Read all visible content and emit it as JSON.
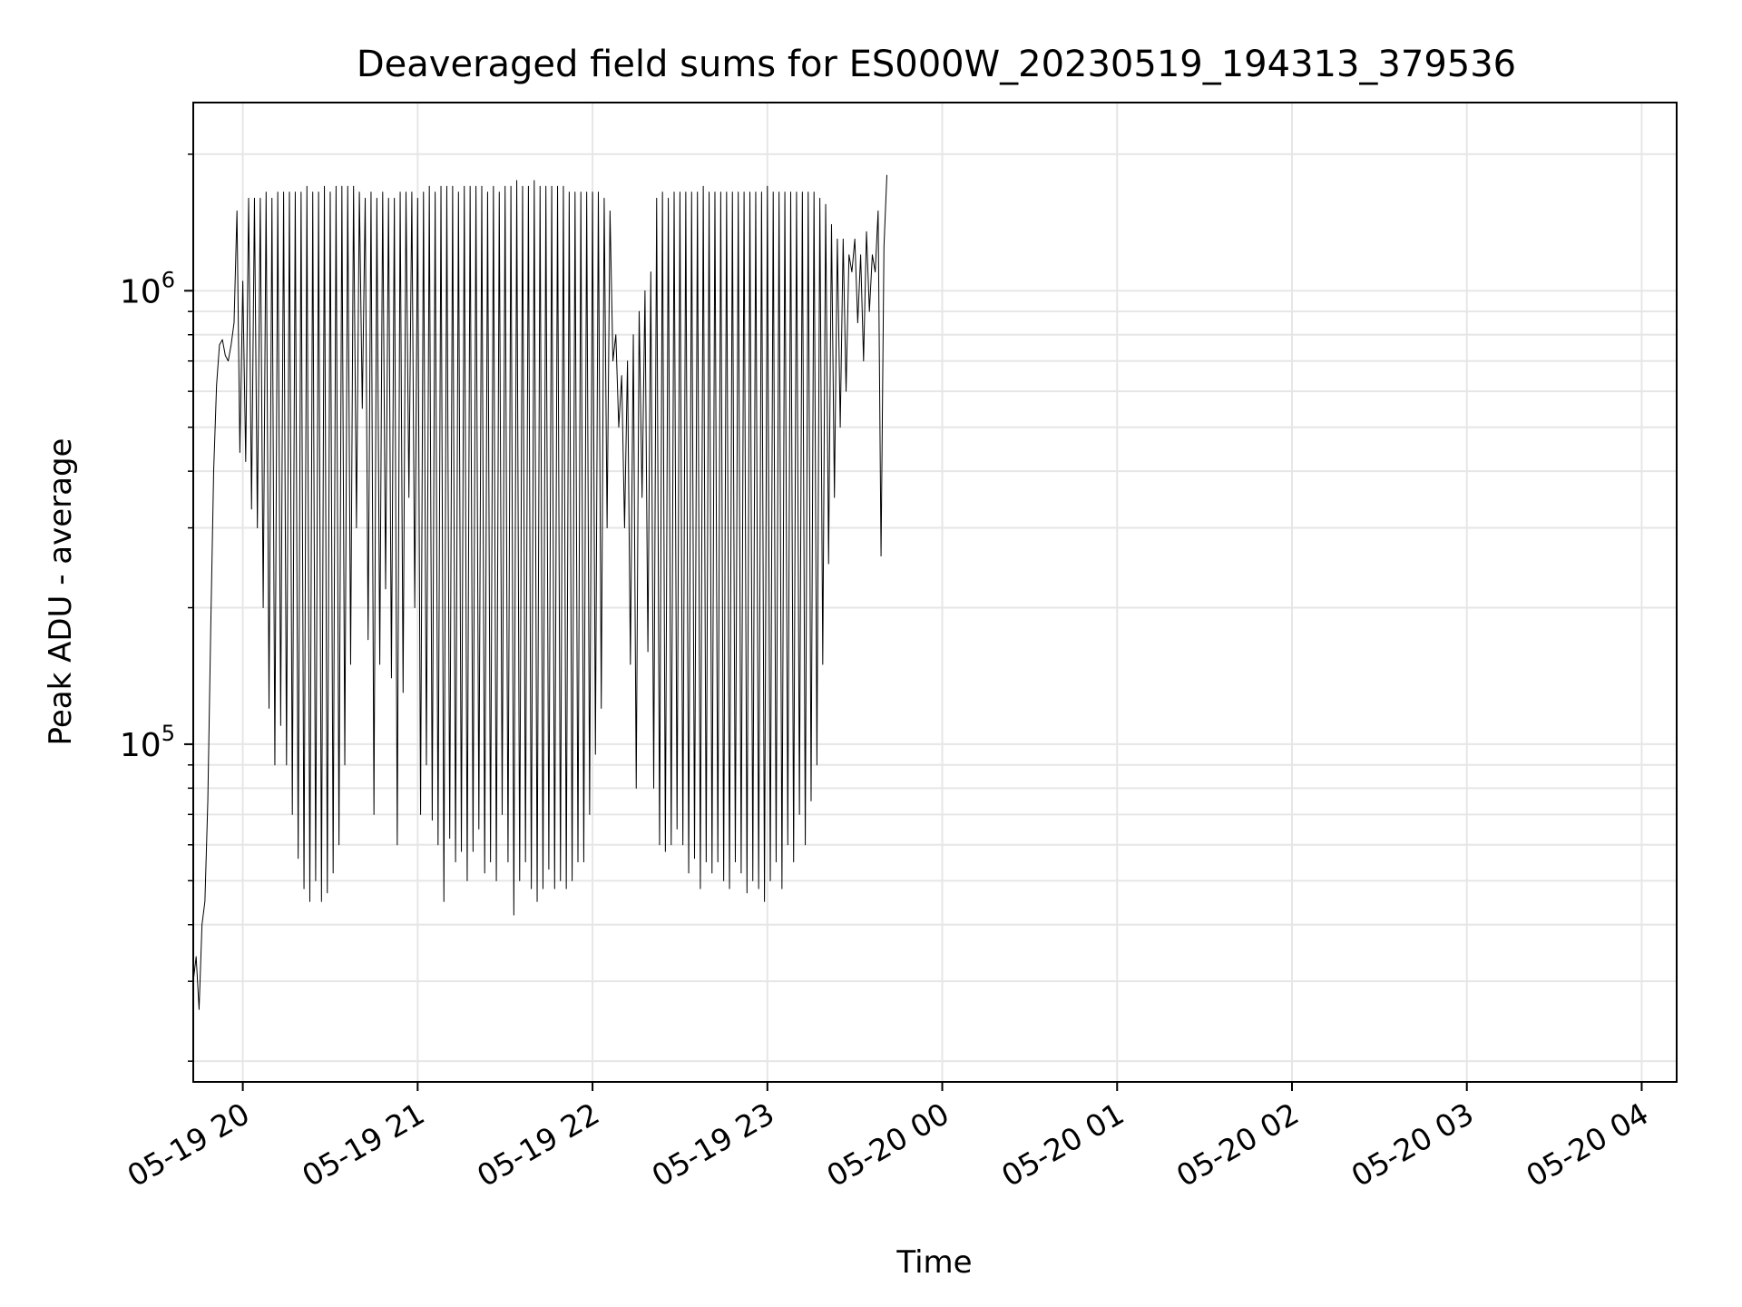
{
  "chart_data": {
    "type": "line",
    "title": "Deaveraged field sums for ES000W_20230519_194313_379536",
    "xlabel": "Time",
    "ylabel": "Peak ADU - average",
    "yscale": "log",
    "xlim": [
      "2023-05-19 19:43",
      "2023-05-20 04:12"
    ],
    "ylim": [
      18000,
      2600000
    ],
    "grid": true,
    "x_ticks": [
      "05-19 20",
      "05-19 21",
      "05-19 22",
      "05-19 23",
      "05-20 00",
      "05-20 01",
      "05-20 02",
      "05-20 03",
      "05-20 04"
    ],
    "y_ticks": [
      {
        "base": "10",
        "exp": "5",
        "value": 100000
      },
      {
        "base": "10",
        "exp": "6",
        "value": 1000000
      }
    ],
    "line_color": "#000000",
    "series": [
      {
        "x_start": "2023-05-19 19:43",
        "step_minutes": 1,
        "values": [
          30000,
          34000,
          26000,
          40000,
          45000,
          75000,
          180000,
          400000,
          620000,
          760000,
          780000,
          720000,
          700000,
          760000,
          850000,
          1500000,
          440000,
          1050000,
          420000,
          1600000,
          330000,
          1600000,
          300000,
          1600000,
          200000,
          1650000,
          120000,
          1600000,
          90000,
          1650000,
          110000,
          1650000,
          90000,
          1650000,
          70000,
          1650000,
          56000,
          1650000,
          48000,
          1700000,
          45000,
          1650000,
          50000,
          1650000,
          45000,
          1700000,
          47000,
          1650000,
          52000,
          1700000,
          60000,
          1700000,
          90000,
          1700000,
          150000,
          1700000,
          300000,
          1650000,
          550000,
          1600000,
          170000,
          1650000,
          70000,
          1600000,
          150000,
          1650000,
          220000,
          1600000,
          140000,
          1600000,
          60000,
          1650000,
          130000,
          1650000,
          350000,
          1650000,
          200000,
          1600000,
          70000,
          1650000,
          90000,
          1700000,
          68000,
          1650000,
          60000,
          1700000,
          45000,
          1700000,
          62000,
          1700000,
          55000,
          1650000,
          58000,
          1700000,
          50000,
          1700000,
          58000,
          1700000,
          65000,
          1700000,
          52000,
          1650000,
          55000,
          1700000,
          50000,
          1650000,
          70000,
          1700000,
          55000,
          1700000,
          42000,
          1750000,
          50000,
          1700000,
          55000,
          1700000,
          48000,
          1750000,
          45000,
          1700000,
          48000,
          1700000,
          53000,
          1700000,
          48000,
          1700000,
          50000,
          1700000,
          48000,
          1650000,
          50000,
          1650000,
          55000,
          1650000,
          55000,
          1650000,
          70000,
          1650000,
          95000,
          1650000,
          120000,
          1600000,
          300000,
          1500000,
          700000,
          800000,
          500000,
          650000,
          300000,
          700000,
          150000,
          800000,
          80000,
          900000,
          350000,
          1000000,
          160000,
          1100000,
          80000,
          1600000,
          60000,
          1650000,
          58000,
          1600000,
          60000,
          1650000,
          65000,
          1650000,
          60000,
          1650000,
          52000,
          1650000,
          56000,
          1650000,
          48000,
          1700000,
          55000,
          1650000,
          52000,
          1650000,
          55000,
          1650000,
          50000,
          1650000,
          48000,
          1650000,
          55000,
          1650000,
          52000,
          1650000,
          47000,
          1650000,
          50000,
          1650000,
          48000,
          1650000,
          45000,
          1700000,
          50000,
          1650000,
          55000,
          1650000,
          48000,
          1650000,
          60000,
          1650000,
          55000,
          1650000,
          70000,
          1650000,
          60000,
          1650000,
          75000,
          1650000,
          90000,
          1600000,
          150000,
          1550000,
          250000,
          1400000,
          350000,
          1300000,
          500000,
          1300000,
          600000,
          1200000,
          1100000,
          1300000,
          850000,
          1200000,
          700000,
          1350000,
          900000,
          1200000,
          1100000,
          1500000,
          260000,
          1250000,
          1800000
        ]
      }
    ]
  }
}
